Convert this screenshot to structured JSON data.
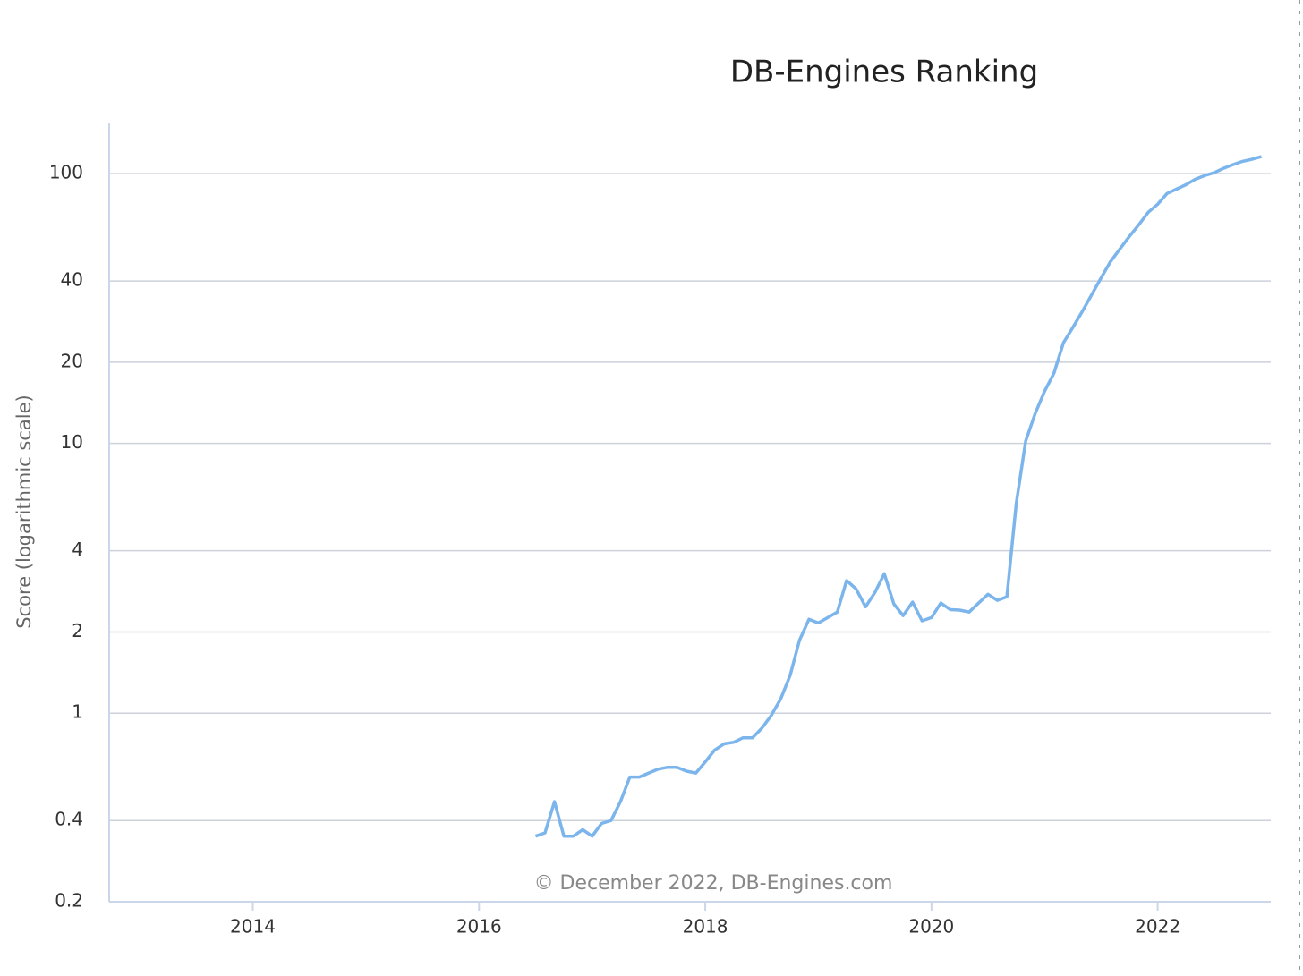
{
  "chart_data": {
    "type": "line",
    "title": "DB-Engines Ranking",
    "ylabel": "Score (logarithmic scale)",
    "credit": "© December 2022, DB-Engines.com",
    "log_y": true,
    "grid": true,
    "xlim": [
      2012.73,
      2023.0
    ],
    "xticks": [
      2014,
      2016,
      2018,
      2020,
      2022
    ],
    "ylim": [
      0.2,
      150
    ],
    "yticks": [
      0.2,
      0.4,
      1,
      2,
      4,
      10,
      20,
      40,
      100
    ],
    "x": [
      2016.5,
      2016.583,
      2016.667,
      2016.75,
      2016.833,
      2016.917,
      2017,
      2017.083,
      2017.167,
      2017.25,
      2017.333,
      2017.417,
      2017.5,
      2017.583,
      2017.667,
      2017.75,
      2017.833,
      2017.917,
      2018,
      2018.083,
      2018.167,
      2018.25,
      2018.333,
      2018.417,
      2018.5,
      2018.583,
      2018.667,
      2018.75,
      2018.833,
      2018.917,
      2019,
      2019.083,
      2019.167,
      2019.25,
      2019.333,
      2019.417,
      2019.5,
      2019.583,
      2019.667,
      2019.75,
      2019.833,
      2019.917,
      2020,
      2020.083,
      2020.167,
      2020.25,
      2020.333,
      2020.417,
      2020.5,
      2020.583,
      2020.667,
      2020.75,
      2020.833,
      2020.917,
      2021,
      2021.083,
      2021.167,
      2021.25,
      2021.333,
      2021.417,
      2021.5,
      2021.583,
      2021.667,
      2021.75,
      2021.833,
      2021.917,
      2022,
      2022.083,
      2022.167,
      2022.25,
      2022.333,
      2022.417,
      2022.5,
      2022.583,
      2022.667,
      2022.75,
      2022.833,
      2022.917
    ],
    "series": [
      {
        "name": "Score",
        "color": "#7cb5ec",
        "values": [
          0.35,
          0.36,
          0.47,
          0.35,
          0.35,
          0.37,
          0.35,
          0.39,
          0.4,
          0.47,
          0.58,
          0.58,
          0.6,
          0.62,
          0.63,
          0.63,
          0.61,
          0.6,
          0.66,
          0.73,
          0.77,
          0.78,
          0.81,
          0.81,
          0.88,
          0.98,
          1.13,
          1.38,
          1.86,
          2.23,
          2.16,
          2.26,
          2.37,
          3.1,
          2.89,
          2.48,
          2.8,
          3.29,
          2.54,
          2.3,
          2.58,
          2.2,
          2.26,
          2.56,
          2.42,
          2.41,
          2.37,
          2.56,
          2.76,
          2.62,
          2.7,
          6.0,
          10.2,
          12.9,
          15.6,
          18.2,
          23.6,
          26.9,
          30.8,
          35.6,
          41.1,
          47.2,
          52.6,
          58.5,
          64.6,
          71.9,
          77.0,
          84.4,
          87.6,
          91.0,
          95.3,
          98.4,
          100.8,
          104.7,
          108,
          111,
          113,
          115.6
        ]
      }
    ]
  }
}
